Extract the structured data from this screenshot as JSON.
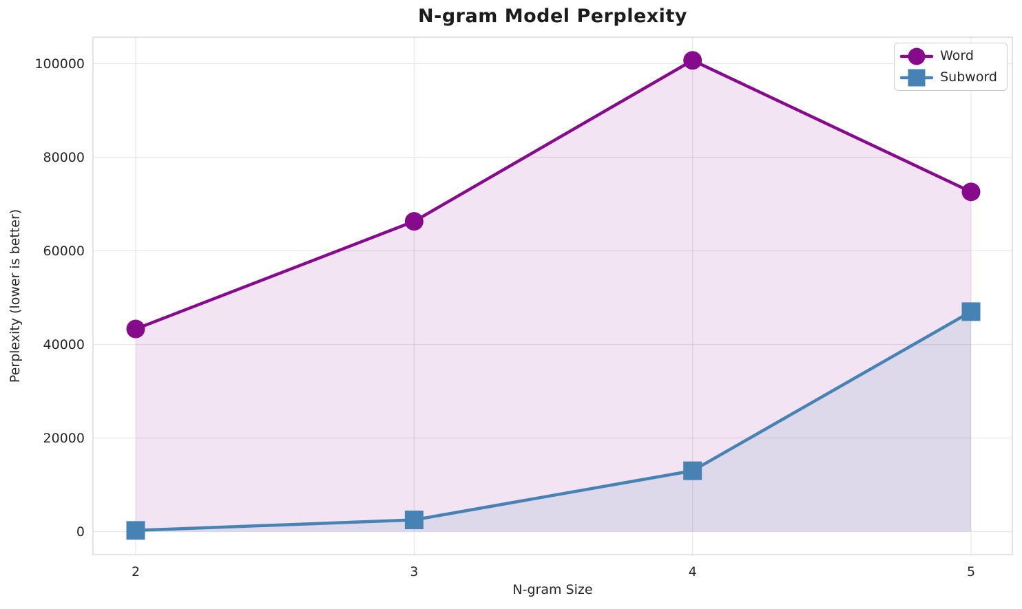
{
  "chart_data": {
    "type": "line",
    "title": "N-gram Model Perplexity",
    "xlabel": "N-gram Size",
    "ylabel": "Perplexity (lower is better)",
    "categories": [
      "2",
      "3",
      "4",
      "5"
    ],
    "series": [
      {
        "name": "Word",
        "marker": "circle",
        "color": "#860b8c",
        "fill_opacity": 0.11,
        "values": [
          43300,
          66300,
          100700,
          72600
        ]
      },
      {
        "name": "Subword",
        "marker": "square",
        "color": "#4682b4",
        "fill_opacity": 0.12,
        "values": [
          250,
          2500,
          13000,
          47000
        ]
      }
    ],
    "y_ticks": [
      "0",
      "20000",
      "40000",
      "60000",
      "80000",
      "100000"
    ],
    "y_tick_values": [
      0,
      20000,
      40000,
      60000,
      80000,
      100000
    ],
    "ylim": [
      -4900,
      105800
    ],
    "grid": true,
    "area_fill": true,
    "legend_position": "upper right",
    "colors": {
      "tick_text": "#262626",
      "title_text": "#1c1c1c",
      "grid_line": "#e9e7ea",
      "spine": "#d6d4d8",
      "background": "#ffffff"
    }
  }
}
